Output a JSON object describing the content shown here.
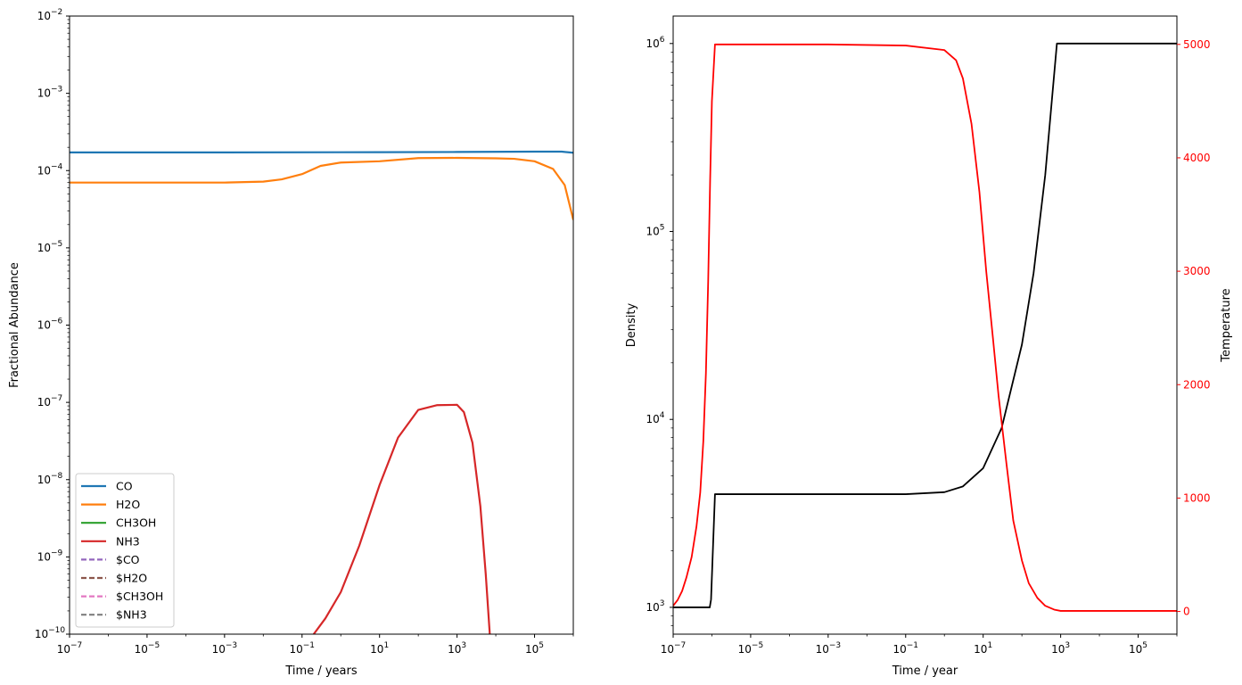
{
  "chart_data": [
    {
      "type": "line",
      "xlabel": "Time / years",
      "ylabel": "Fractional Abundance",
      "xscale": "log",
      "yscale": "log",
      "xlim": [
        1e-07,
        1000000.0
      ],
      "ylim": [
        1e-10,
        0.01
      ],
      "xticks": [
        {
          "value": 1e-07,
          "base": "10",
          "exp": "−7"
        },
        {
          "value": 1e-05,
          "base": "10",
          "exp": "−5"
        },
        {
          "value": 0.001,
          "base": "10",
          "exp": "−3"
        },
        {
          "value": 0.1,
          "base": "10",
          "exp": "−1"
        },
        {
          "value": 10.0,
          "base": "10",
          "exp": "1"
        },
        {
          "value": 1000.0,
          "base": "10",
          "exp": "3"
        },
        {
          "value": 100000.0,
          "base": "10",
          "exp": "5"
        }
      ],
      "yticks": [
        {
          "value": 1e-10,
          "base": "10",
          "exp": "−10"
        },
        {
          "value": 1e-09,
          "base": "10",
          "exp": "−9"
        },
        {
          "value": 1e-08,
          "base": "10",
          "exp": "−8"
        },
        {
          "value": 1e-07,
          "base": "10",
          "exp": "−7"
        },
        {
          "value": 1e-06,
          "base": "10",
          "exp": "−6"
        },
        {
          "value": 1e-05,
          "base": "10",
          "exp": "−5"
        },
        {
          "value": 0.0001,
          "base": "10",
          "exp": "−4"
        },
        {
          "value": 0.001,
          "base": "10",
          "exp": "−3"
        },
        {
          "value": 0.01,
          "base": "10",
          "exp": "−2"
        }
      ],
      "legend_position": "lower-left",
      "series": [
        {
          "name": "CO",
          "color": "#1f77b4",
          "dash": "solid",
          "x": [
            1e-07,
            0.001,
            10.0,
            1000.0,
            100000.0,
            500000.0,
            1000000.0
          ],
          "y": [
            0.000172,
            0.000172,
            0.000173,
            0.000174,
            0.000176,
            0.000176,
            0.00017
          ]
        },
        {
          "name": "H2O",
          "color": "#ff7f0e",
          "dash": "solid",
          "x": [
            1e-07,
            0.001,
            0.01,
            0.03,
            0.1,
            0.3,
            1,
            10.0,
            100.0,
            1000.0,
            10000.0,
            30000.0,
            100000.0,
            300000.0,
            600000.0,
            1000000.0
          ],
          "y": [
            7e-05,
            7e-05,
            7.2e-05,
            7.7e-05,
            9e-05,
            0.000115,
            0.000127,
            0.000132,
            0.000145,
            0.000146,
            0.000144,
            0.000142,
            0.000132,
            0.000105,
            6.5e-05,
            2.3e-05
          ]
        },
        {
          "name": "CH3OH",
          "color": "#2ca02c",
          "dash": "solid",
          "x": [],
          "y": []
        },
        {
          "name": "NH3",
          "color": "#d62728",
          "dash": "solid",
          "x": [
            0.2,
            0.4,
            1,
            3,
            10,
            30,
            100,
            300,
            1000,
            1500,
            2500,
            4000,
            5500,
            7000
          ],
          "y": [
            1e-10,
            1.6e-10,
            3.5e-10,
            1.4e-09,
            8.5e-09,
            3.5e-08,
            8e-08,
            9.2e-08,
            9.3e-08,
            7.5e-08,
            3e-08,
            4.5e-09,
            6e-10,
            1e-10
          ]
        },
        {
          "name": "$CO",
          "color": "#9467bd",
          "dash": "dashed",
          "x": [],
          "y": []
        },
        {
          "name": "$H2O",
          "color": "#8c564b",
          "dash": "dashed",
          "x": [],
          "y": []
        },
        {
          "name": "$CH3OH",
          "color": "#e377c2",
          "dash": "dashed",
          "x": [],
          "y": []
        },
        {
          "name": "$NH3",
          "color": "#7f7f7f",
          "dash": "dashed",
          "x": [],
          "y": []
        }
      ]
    },
    {
      "type": "line",
      "xlabel": "Time / year",
      "ylabel": "Density",
      "y2label": "Temperature",
      "xscale": "log",
      "yscale": "log",
      "y2scale": "linear",
      "xlim": [
        1e-07,
        1000000.0
      ],
      "ylim": [
        720,
        1400000.0
      ],
      "y2lim": [
        -200,
        5250
      ],
      "xticks": [
        {
          "value": 1e-07,
          "base": "10",
          "exp": "−7"
        },
        {
          "value": 1e-05,
          "base": "10",
          "exp": "−5"
        },
        {
          "value": 0.001,
          "base": "10",
          "exp": "−3"
        },
        {
          "value": 0.1,
          "base": "10",
          "exp": "−1"
        },
        {
          "value": 10.0,
          "base": "10",
          "exp": "1"
        },
        {
          "value": 1000.0,
          "base": "10",
          "exp": "3"
        },
        {
          "value": 100000.0,
          "base": "10",
          "exp": "5"
        }
      ],
      "yticks": [
        {
          "value": 1000.0,
          "base": "10",
          "exp": "3"
        },
        {
          "value": 10000.0,
          "base": "10",
          "exp": "4"
        },
        {
          "value": 100000.0,
          "base": "10",
          "exp": "5"
        },
        {
          "value": 1000000.0,
          "base": "10",
          "exp": "6"
        }
      ],
      "y2ticks": [
        0,
        1000,
        2000,
        3000,
        4000,
        5000
      ],
      "y2color": "#ff0000",
      "series": [
        {
          "name": "",
          "axis": "left",
          "color": "#000000",
          "x": [
            1e-07,
            8.8e-07,
            9.5e-07,
            1.2e-06,
            0.001,
            0.1,
            1,
            3,
            10,
            30,
            100,
            200,
            400,
            800,
            1000000.0
          ],
          "y": [
            1000,
            1000,
            1100,
            4000,
            4000,
            4000,
            4100,
            4400,
            5500,
            9000,
            25000,
            60000,
            200000,
            1000000,
            1000000
          ]
        },
        {
          "name": "",
          "axis": "right",
          "color": "#ff0000",
          "x": [
            1e-07,
            1.3e-07,
            1.7e-07,
            2.2e-07,
            3e-07,
            4e-07,
            5e-07,
            6e-07,
            7e-07,
            8e-07,
            9e-07,
            1e-06,
            1.2e-06,
            0.001,
            0.1,
            1,
            2,
            3,
            5,
            8,
            12,
            18,
            25,
            40,
            60,
            100,
            150,
            250,
            400,
            700,
            1000,
            1000000.0
          ],
          "y": [
            50,
            100,
            180,
            300,
            480,
            750,
            1050,
            1500,
            2100,
            2900,
            3800,
            4500,
            5000,
            5000,
            4990,
            4950,
            4860,
            4700,
            4300,
            3700,
            3000,
            2400,
            1900,
            1300,
            800,
            450,
            250,
            120,
            50,
            15,
            5,
            5
          ]
        }
      ]
    }
  ]
}
